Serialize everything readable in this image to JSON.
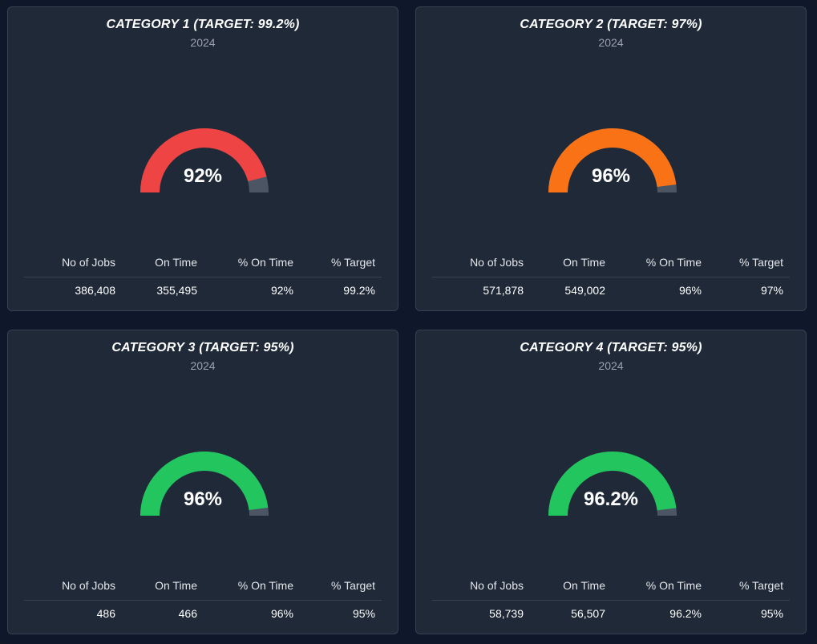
{
  "colors": {
    "background": "#0f172a",
    "card": "#1f2937",
    "track": "#4b5563",
    "red": "#ef4444",
    "orange": "#f97316",
    "green": "#22c55e"
  },
  "headers": {
    "jobs": "No of Jobs",
    "on_time": "On Time",
    "pct_on_time": "% On Time",
    "pct_target": "% Target"
  },
  "cards": [
    {
      "title": "CATEGORY 1 (TARGET: 99.2%)",
      "subtitle": "2024",
      "gauge_label": "92%",
      "gauge_fraction": 0.92,
      "gauge_color": "#ef4444",
      "jobs": "386,408",
      "on_time": "355,495",
      "pct_on_time": "92%",
      "pct_target": "99.2%"
    },
    {
      "title": "CATEGORY 2 (TARGET: 97%)",
      "subtitle": "2024",
      "gauge_label": "96%",
      "gauge_fraction": 0.96,
      "gauge_color": "#f97316",
      "jobs": "571,878",
      "on_time": "549,002",
      "pct_on_time": "96%",
      "pct_target": "97%"
    },
    {
      "title": "CATEGORY 3 (TARGET: 95%)",
      "subtitle": "2024",
      "gauge_label": "96%",
      "gauge_fraction": 0.96,
      "gauge_color": "#22c55e",
      "jobs": "486",
      "on_time": "466",
      "pct_on_time": "96%",
      "pct_target": "95%"
    },
    {
      "title": "CATEGORY 4 (TARGET: 95%)",
      "subtitle": "2024",
      "gauge_label": "96.2%",
      "gauge_fraction": 0.962,
      "gauge_color": "#22c55e",
      "jobs": "58,739",
      "on_time": "56,507",
      "pct_on_time": "96.2%",
      "pct_target": "95%"
    }
  ]
}
